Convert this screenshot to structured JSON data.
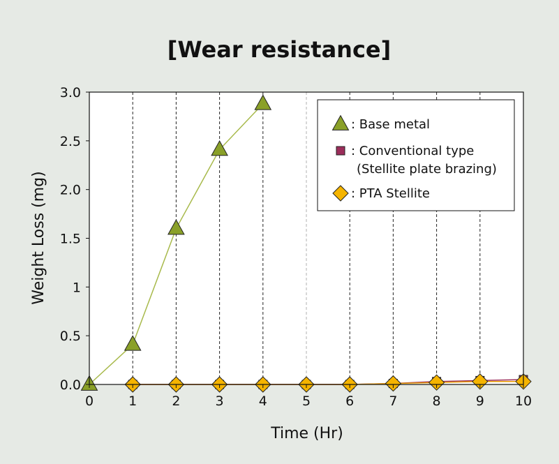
{
  "chart_data": {
    "type": "line",
    "title": "[Wear resistance]",
    "xlabel": "Time (Hr)",
    "ylabel": "Weight Loss (mg)",
    "xlim": [
      0,
      10
    ],
    "ylim": [
      0,
      3.0
    ],
    "x_ticks": [
      0,
      1,
      2,
      3,
      4,
      5,
      6,
      7,
      8,
      9,
      10
    ],
    "x_tick_labels": [
      "0",
      "1",
      "2",
      "3",
      "4",
      "5",
      "6",
      "7",
      "8",
      "9",
      "10"
    ],
    "y_ticks": [
      0,
      0.5,
      1,
      1.5,
      2,
      2.5,
      3.0
    ],
    "y_tick_labels": [
      "0.0",
      "0.5",
      "1",
      "1.5",
      "2.0",
      "2.5",
      "3.0"
    ],
    "grid": "vertical dashed",
    "legend_position": "top-right",
    "series": [
      {
        "name": ": Base metal",
        "marker": "triangle",
        "color": "#8aa028",
        "line_color": "#a7b94a",
        "x": [
          0,
          1,
          2,
          3,
          4
        ],
        "y": [
          0,
          0.41,
          1.6,
          2.41,
          2.88
        ]
      },
      {
        "name": ": Conventional type",
        "name_line2": "(Stellite plate brazing)",
        "marker": "square",
        "color": "#9b2d5a",
        "line_color": "#9b2d5a",
        "x": [
          1,
          2,
          3,
          4,
          5,
          6,
          7,
          8,
          9,
          10
        ],
        "y": [
          0.0,
          0.0,
          0.0,
          0.0,
          0.0,
          0.0,
          0.01,
          0.03,
          0.04,
          0.05
        ]
      },
      {
        "name": ": PTA Stellite",
        "marker": "diamond",
        "color": "#f5b400",
        "line_color": "#e89a00",
        "x": [
          1,
          2,
          3,
          4,
          5,
          6,
          7,
          8,
          9,
          10
        ],
        "y": [
          0.0,
          0.0,
          0.0,
          0.0,
          0.0,
          0.0,
          0.01,
          0.02,
          0.03,
          0.03
        ]
      }
    ]
  }
}
